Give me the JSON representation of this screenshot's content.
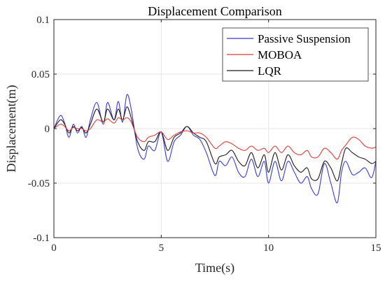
{
  "chart_data": {
    "type": "line",
    "title": "Displacement Comparison",
    "xlabel": "Time(s)",
    "ylabel": "Displacement(m)",
    "xlim": [
      0,
      15
    ],
    "ylim": [
      -0.1,
      0.1
    ],
    "xticks": [
      0,
      5,
      10,
      15
    ],
    "xtick_labels": [
      "0",
      "5",
      "10",
      "15"
    ],
    "yticks": [
      -0.1,
      -0.05,
      0,
      0.05,
      0.1
    ],
    "ytick_labels": [
      "-0.1",
      "-0.05",
      "0",
      "0.05",
      "0.1"
    ],
    "grid": true,
    "legend_position": "top-right",
    "x": [
      0,
      0.3,
      0.5,
      0.7,
      0.9,
      1.1,
      1.3,
      1.5,
      1.7,
      2.0,
      2.3,
      2.5,
      2.8,
      3.0,
      3.2,
      3.4,
      3.6,
      3.9,
      4.2,
      4.4,
      4.7,
      5.0,
      5.3,
      5.6,
      5.9,
      6.2,
      6.5,
      6.8,
      7.1,
      7.5,
      7.7,
      8.0,
      8.3,
      8.6,
      8.9,
      9.2,
      9.5,
      9.8,
      10.0,
      10.3,
      10.6,
      10.9,
      11.2,
      11.5,
      11.8,
      12.0,
      12.3,
      12.6,
      12.9,
      13.2,
      13.4,
      13.6,
      13.9,
      14.2,
      14.5,
      14.8,
      15.0
    ],
    "series": [
      {
        "name": "Passive Suspension",
        "color": "#3b3bcc",
        "values": [
          0,
          0.012,
          0.005,
          -0.008,
          0.004,
          -0.004,
          0.002,
          -0.008,
          0.008,
          0.024,
          0.004,
          0.024,
          0.008,
          0.025,
          0.006,
          0.031,
          0.018,
          -0.018,
          -0.028,
          -0.016,
          -0.02,
          -0.003,
          -0.03,
          -0.012,
          -0.006,
          0.002,
          -0.006,
          -0.01,
          -0.022,
          -0.043,
          -0.03,
          -0.034,
          -0.026,
          -0.04,
          -0.044,
          -0.028,
          -0.044,
          -0.03,
          -0.05,
          -0.03,
          -0.048,
          -0.03,
          -0.04,
          -0.05,
          -0.044,
          -0.055,
          -0.06,
          -0.032,
          -0.05,
          -0.068,
          -0.04,
          -0.03,
          -0.042,
          -0.04,
          -0.036,
          -0.045,
          -0.03
        ]
      },
      {
        "name": "MOBOA",
        "color": "#e03a3a",
        "values": [
          0,
          0.004,
          0.002,
          -0.002,
          0.001,
          0.0,
          0.0,
          -0.002,
          0.0,
          0.008,
          0.006,
          0.009,
          0.005,
          0.01,
          0.008,
          0.01,
          0.006,
          -0.008,
          -0.012,
          -0.008,
          -0.006,
          -0.003,
          -0.01,
          -0.006,
          -0.003,
          -0.002,
          -0.004,
          -0.004,
          -0.008,
          -0.018,
          -0.016,
          -0.012,
          -0.014,
          -0.018,
          -0.02,
          -0.016,
          -0.02,
          -0.018,
          -0.022,
          -0.016,
          -0.022,
          -0.016,
          -0.022,
          -0.024,
          -0.02,
          -0.026,
          -0.026,
          -0.018,
          -0.022,
          -0.028,
          -0.02,
          -0.015,
          -0.008,
          -0.01,
          -0.016,
          -0.018,
          -0.017
        ]
      },
      {
        "name": "LQR",
        "color": "#1a1a1a",
        "values": [
          0,
          0.008,
          0.004,
          -0.004,
          0.002,
          -0.002,
          0.001,
          -0.004,
          0.004,
          0.018,
          0.006,
          0.018,
          0.008,
          0.018,
          0.008,
          0.02,
          0.01,
          -0.012,
          -0.02,
          -0.012,
          -0.012,
          -0.003,
          -0.02,
          -0.008,
          -0.004,
          0.002,
          -0.004,
          -0.008,
          -0.012,
          -0.032,
          -0.026,
          -0.024,
          -0.02,
          -0.03,
          -0.034,
          -0.022,
          -0.036,
          -0.024,
          -0.04,
          -0.022,
          -0.038,
          -0.024,
          -0.034,
          -0.04,
          -0.036,
          -0.046,
          -0.046,
          -0.03,
          -0.036,
          -0.048,
          -0.032,
          -0.018,
          -0.022,
          -0.026,
          -0.028,
          -0.032,
          -0.03
        ]
      }
    ]
  }
}
